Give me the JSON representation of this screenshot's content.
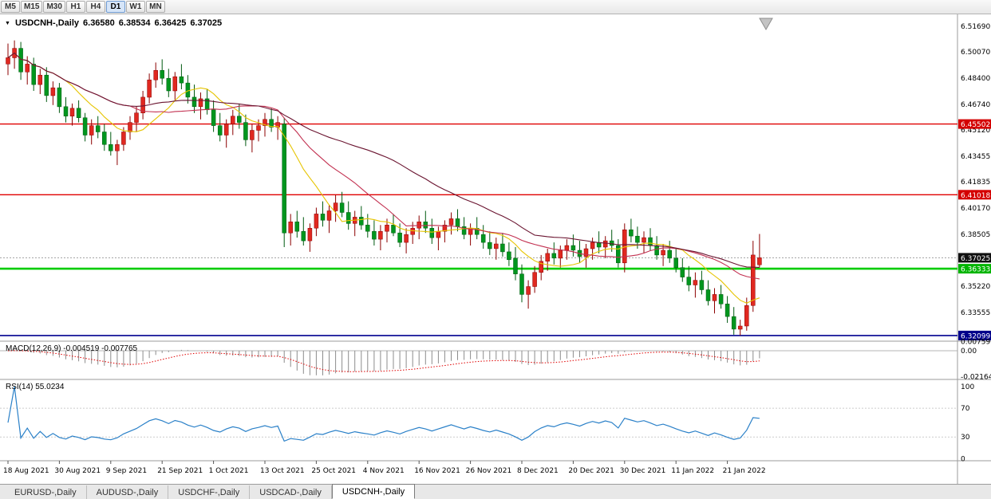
{
  "toolbar": {
    "timeframes": [
      "M5",
      "M15",
      "M30",
      "H1",
      "H4",
      "D1",
      "W1",
      "MN"
    ],
    "active_timeframe": "D1"
  },
  "chart_header": {
    "dropdown_icon": "▼",
    "title": "USDCNH-,Daily",
    "open": "6.36580",
    "high": "6.38534",
    "low": "6.36425",
    "close": "6.37025"
  },
  "indicators": {
    "macd_label": "MACD(12,26,9) -0.004519 -0.007765",
    "rsi_label": "RSI(14) 55.0234"
  },
  "tabs": [
    {
      "label": "EURUSD-,Daily",
      "active": false
    },
    {
      "label": "AUDUSD-,Daily",
      "active": false
    },
    {
      "label": "USDCHF-,Daily",
      "active": false
    },
    {
      "label": "USDCAD-,Daily",
      "active": false
    },
    {
      "label": "USDCNH-,Daily",
      "active": true
    }
  ],
  "chart_data": {
    "type": "candlestick",
    "symbol": "USDCNH-",
    "timeframe": "Daily",
    "ylim": [
      6.3174,
      6.5245
    ],
    "y_ticks": [
      6.5169,
      6.5007,
      6.484,
      6.4674,
      6.4512,
      6.43455,
      6.41835,
      6.4017,
      6.38505,
      6.3522,
      6.33555
    ],
    "badges": [
      {
        "price": 6.45502,
        "bg": "#d40000",
        "fg": "#ffffff"
      },
      {
        "price": 6.41018,
        "bg": "#d40000",
        "fg": "#ffffff"
      },
      {
        "price": 6.37025,
        "bg": "#101010",
        "fg": "#ffffff"
      },
      {
        "price": 6.36333,
        "bg": "#00b400",
        "fg": "#ffffff"
      },
      {
        "price": 6.32099,
        "bg": "#00008b",
        "fg": "#ffffff"
      }
    ],
    "hlines": [
      {
        "price": 6.45502,
        "color": "#e00000",
        "width": 1.4
      },
      {
        "price": 6.41018,
        "color": "#e00000",
        "width": 1.4
      },
      {
        "price": 6.37025,
        "color": "#a0a0a0",
        "width": 1,
        "dash": "2,2"
      },
      {
        "price": 6.36333,
        "color": "#00cc00",
        "width": 2.6
      },
      {
        "price": 6.32099,
        "color": "#000090",
        "width": 1.6
      }
    ],
    "colors": {
      "up": "#e02820",
      "up_border": "#8c0000",
      "down": "#00961e",
      "down_border": "#005a10",
      "macd_hist": "#8c8c8c",
      "macd_signal": "#e00000",
      "rsi": "#2a80c8"
    },
    "overlays": [
      {
        "type": "sma",
        "period": 10,
        "color": "#e6c400"
      },
      {
        "type": "sma",
        "period": 20,
        "color": "#c23050"
      },
      {
        "type": "sma",
        "period": 40,
        "color": "#6a1430"
      }
    ],
    "macd": {
      "params": "12,26,9",
      "value": -0.004519,
      "signal_value": -0.007765,
      "ylim": [
        -0.024,
        0.008
      ],
      "scale": [
        {
          "text": "0.00759",
          "value": 0.00759
        },
        {
          "text": "0.00",
          "value": 0
        },
        {
          "text": "-0.02164",
          "value": -0.02164
        }
      ]
    },
    "rsi": {
      "period": 14,
      "value": 55.0234,
      "ylim": [
        -3,
        110
      ],
      "levels": [
        70,
        30
      ],
      "scale": [
        {
          "text": "100",
          "value": 100
        },
        {
          "text": "70",
          "value": 70
        },
        {
          "text": "30",
          "value": 30
        },
        {
          "text": "0",
          "value": 0
        }
      ]
    },
    "x_labels": [
      {
        "text": "18 Aug 2021",
        "bar": 0
      },
      {
        "text": "30 Aug 2021",
        "bar": 8
      },
      {
        "text": "9 Sep 2021",
        "bar": 16
      },
      {
        "text": "21 Sep 2021",
        "bar": 24
      },
      {
        "text": "1 Oct 2021",
        "bar": 32
      },
      {
        "text": "13 Oct 2021",
        "bar": 40
      },
      {
        "text": "25 Oct 2021",
        "bar": 48
      },
      {
        "text": "4 Nov 2021",
        "bar": 56
      },
      {
        "text": "16 Nov 2021",
        "bar": 64
      },
      {
        "text": "26 Nov 2021",
        "bar": 72
      },
      {
        "text": "8 Dec 2021",
        "bar": 80
      },
      {
        "text": "20 Dec 2021",
        "bar": 88
      },
      {
        "text": "30 Dec 2021",
        "bar": 96
      },
      {
        "text": "11 Jan 2022",
        "bar": 104
      },
      {
        "text": "21 Jan 2022",
        "bar": 112
      }
    ],
    "candles": [
      [
        6.493,
        6.506,
        6.486,
        6.497
      ],
      [
        6.497,
        6.508,
        6.49,
        6.503
      ],
      [
        6.503,
        6.507,
        6.483,
        6.488
      ],
      [
        6.488,
        6.498,
        6.48,
        6.493
      ],
      [
        6.493,
        6.497,
        6.476,
        6.48
      ],
      [
        6.48,
        6.49,
        6.474,
        6.486
      ],
      [
        6.486,
        6.491,
        6.469,
        6.473
      ],
      [
        6.473,
        6.482,
        6.467,
        6.478
      ],
      [
        6.478,
        6.481,
        6.462,
        6.466
      ],
      [
        6.466,
        6.472,
        6.456,
        6.46
      ],
      [
        6.46,
        6.468,
        6.454,
        6.465
      ],
      [
        6.465,
        6.47,
        6.456,
        6.459
      ],
      [
        6.459,
        6.462,
        6.444,
        6.448
      ],
      [
        6.448,
        6.458,
        6.442,
        6.454
      ],
      [
        6.454,
        6.46,
        6.446,
        6.45
      ],
      [
        6.45,
        6.455,
        6.438,
        6.442
      ],
      [
        6.442,
        6.45,
        6.435,
        6.438
      ],
      [
        6.438,
        6.445,
        6.429,
        6.442
      ],
      [
        6.442,
        6.453,
        6.438,
        6.45
      ],
      [
        6.45,
        6.46,
        6.445,
        6.456
      ],
      [
        6.456,
        6.466,
        6.45,
        6.462
      ],
      [
        6.462,
        6.476,
        6.458,
        6.472
      ],
      [
        6.472,
        6.487,
        6.468,
        6.483
      ],
      [
        6.483,
        6.494,
        6.478,
        6.489
      ],
      [
        6.489,
        6.496,
        6.48,
        6.484
      ],
      [
        6.484,
        6.49,
        6.472,
        6.476
      ],
      [
        6.476,
        6.488,
        6.47,
        6.485
      ],
      [
        6.485,
        6.493,
        6.477,
        6.481
      ],
      [
        6.481,
        6.486,
        6.468,
        6.472
      ],
      [
        6.472,
        6.48,
        6.462,
        6.466
      ],
      [
        6.466,
        6.475,
        6.458,
        6.471
      ],
      [
        6.471,
        6.477,
        6.461,
        6.464
      ],
      [
        6.464,
        6.47,
        6.45,
        6.454
      ],
      [
        6.454,
        6.462,
        6.444,
        6.448
      ],
      [
        6.448,
        6.458,
        6.44,
        6.455
      ],
      [
        6.455,
        6.464,
        6.448,
        6.46
      ],
      [
        6.46,
        6.468,
        6.452,
        6.456
      ],
      [
        6.456,
        6.461,
        6.441,
        6.445
      ],
      [
        6.445,
        6.455,
        6.437,
        6.451
      ],
      [
        6.451,
        6.458,
        6.444,
        6.454
      ],
      [
        6.454,
        6.462,
        6.447,
        6.458
      ],
      [
        6.458,
        6.465,
        6.45,
        6.453
      ],
      [
        6.453,
        6.46,
        6.445,
        6.456
      ],
      [
        6.455,
        6.459,
        6.377,
        6.386
      ],
      [
        6.386,
        6.398,
        6.378,
        6.393
      ],
      [
        6.393,
        6.4,
        6.383,
        6.387
      ],
      [
        6.387,
        6.396,
        6.378,
        6.381
      ],
      [
        6.381,
        6.392,
        6.374,
        6.389
      ],
      [
        6.389,
        6.402,
        6.384,
        6.398
      ],
      [
        6.398,
        6.406,
        6.39,
        6.394
      ],
      [
        6.394,
        6.404,
        6.386,
        6.4
      ],
      [
        6.4,
        6.41,
        6.393,
        6.405
      ],
      [
        6.405,
        6.412,
        6.396,
        6.399
      ],
      [
        6.399,
        6.406,
        6.388,
        6.392
      ],
      [
        6.392,
        6.4,
        6.384,
        6.396
      ],
      [
        6.396,
        6.403,
        6.388,
        6.391
      ],
      [
        6.391,
        6.398,
        6.383,
        6.387
      ],
      [
        6.387,
        6.394,
        6.378,
        6.382
      ],
      [
        6.382,
        6.391,
        6.375,
        6.387
      ],
      [
        6.387,
        6.395,
        6.38,
        6.391
      ],
      [
        6.391,
        6.398,
        6.384,
        6.386
      ],
      [
        6.386,
        6.392,
        6.377,
        6.38
      ],
      [
        6.38,
        6.389,
        6.373,
        6.385
      ],
      [
        6.385,
        6.393,
        6.379,
        6.389
      ],
      [
        6.389,
        6.397,
        6.382,
        6.393
      ],
      [
        6.393,
        6.4,
        6.386,
        6.389
      ],
      [
        6.389,
        6.395,
        6.379,
        6.383
      ],
      [
        6.383,
        6.39,
        6.375,
        6.387
      ],
      [
        6.387,
        6.394,
        6.38,
        6.391
      ],
      [
        6.391,
        6.399,
        6.385,
        6.395
      ],
      [
        6.395,
        6.401,
        6.387,
        6.39
      ],
      [
        6.39,
        6.396,
        6.382,
        6.385
      ],
      [
        6.385,
        6.392,
        6.378,
        6.389
      ],
      [
        6.389,
        6.396,
        6.382,
        6.385
      ],
      [
        6.385,
        6.391,
        6.376,
        6.38
      ],
      [
        6.38,
        6.387,
        6.372,
        6.376
      ],
      [
        6.376,
        6.383,
        6.369,
        6.379
      ],
      [
        6.379,
        6.386,
        6.371,
        6.374
      ],
      [
        6.374,
        6.38,
        6.365,
        6.369
      ],
      [
        6.37,
        6.377,
        6.356,
        6.36
      ],
      [
        6.36,
        6.366,
        6.342,
        6.347
      ],
      [
        6.347,
        6.356,
        6.338,
        6.352
      ],
      [
        6.352,
        6.365,
        6.348,
        6.361
      ],
      [
        6.361,
        6.372,
        6.356,
        6.368
      ],
      [
        6.368,
        6.376,
        6.362,
        6.373
      ],
      [
        6.373,
        6.38,
        6.366,
        6.37
      ],
      [
        6.37,
        6.378,
        6.364,
        6.375
      ],
      [
        6.375,
        6.382,
        6.369,
        6.378
      ],
      [
        6.378,
        6.385,
        6.371,
        6.375
      ],
      [
        6.375,
        6.381,
        6.367,
        6.371
      ],
      [
        6.371,
        6.379,
        6.364,
        6.376
      ],
      [
        6.376,
        6.383,
        6.369,
        6.38
      ],
      [
        6.38,
        6.387,
        6.373,
        6.377
      ],
      [
        6.377,
        6.384,
        6.37,
        6.381
      ],
      [
        6.381,
        6.388,
        6.374,
        6.378
      ],
      [
        6.378,
        6.382,
        6.364,
        6.367
      ],
      [
        6.367,
        6.392,
        6.361,
        6.388
      ],
      [
        6.388,
        6.395,
        6.38,
        6.384
      ],
      [
        6.384,
        6.39,
        6.376,
        6.38
      ],
      [
        6.38,
        6.387,
        6.373,
        6.383
      ],
      [
        6.383,
        6.389,
        6.375,
        6.378
      ],
      [
        6.378,
        6.384,
        6.369,
        6.372
      ],
      [
        6.372,
        6.379,
        6.365,
        6.375
      ],
      [
        6.375,
        6.381,
        6.367,
        6.37
      ],
      [
        6.37,
        6.376,
        6.361,
        6.364
      ],
      [
        6.364,
        6.37,
        6.355,
        6.358
      ],
      [
        6.358,
        6.365,
        6.349,
        6.353
      ],
      [
        6.353,
        6.361,
        6.345,
        6.356
      ],
      [
        6.356,
        6.362,
        6.347,
        6.35
      ],
      [
        6.35,
        6.356,
        6.34,
        6.343
      ],
      [
        6.343,
        6.351,
        6.335,
        6.347
      ],
      [
        6.347,
        6.353,
        6.338,
        6.341
      ],
      [
        6.341,
        6.346,
        6.329,
        6.333
      ],
      [
        6.333,
        6.339,
        6.3215,
        6.325
      ],
      [
        6.325,
        6.331,
        6.321,
        6.327
      ],
      [
        6.327,
        6.345,
        6.324,
        6.34
      ],
      [
        6.34,
        6.381,
        6.336,
        6.372
      ],
      [
        6.3658,
        6.38534,
        6.36425,
        6.37025
      ]
    ]
  }
}
